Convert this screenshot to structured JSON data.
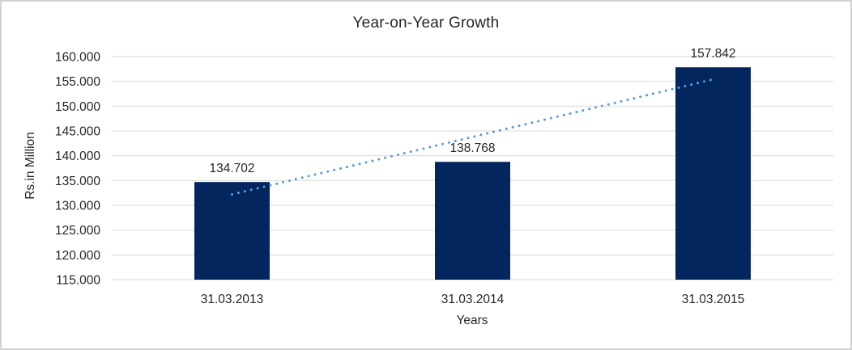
{
  "frame": {
    "background": "#ffffff",
    "border_color": "#d2d2d2"
  },
  "chart_data": {
    "type": "bar",
    "title": "Year-on-Year Growth",
    "xlabel": "Years",
    "ylabel": "Rs.in Million",
    "categories": [
      "31.03.2013",
      "31.03.2014",
      "31.03.2015"
    ],
    "values": [
      134.702,
      138.768,
      157.842
    ],
    "value_labels": [
      "134.702",
      "138.768",
      "157.842"
    ],
    "bar_color": "#03265e",
    "gridline_color": "#d9d9d9",
    "text_color": "#262626",
    "grid": "horizontal",
    "legend": "none",
    "y_axis": {
      "min": 115,
      "max": 160,
      "tick_step": 5,
      "ticks": [
        {
          "value": 160,
          "label": "160.000"
        },
        {
          "value": 155,
          "label": "155.000"
        },
        {
          "value": 150,
          "label": "150.000"
        },
        {
          "value": 145,
          "label": "145.000"
        },
        {
          "value": 140,
          "label": "140.000"
        },
        {
          "value": 135,
          "label": "135.000"
        },
        {
          "value": 130,
          "label": "130.000"
        },
        {
          "value": 125,
          "label": "125.000"
        },
        {
          "value": 120,
          "label": "120.000"
        },
        {
          "value": 115,
          "label": "115.000"
        }
      ]
    },
    "trendline": {
      "type": "linear",
      "style": "dotted",
      "color": "#5b9bd5",
      "start_value": 132.2,
      "end_value": 155.4
    }
  }
}
